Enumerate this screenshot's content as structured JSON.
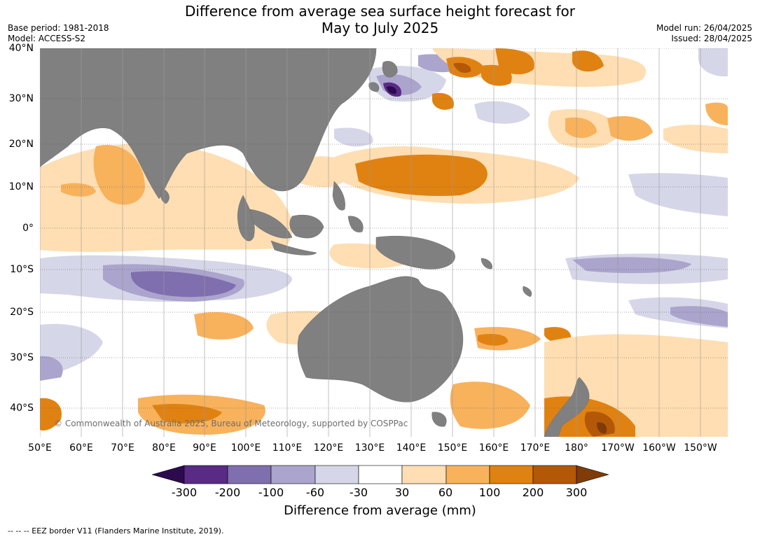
{
  "title": {
    "line1": "Difference from average sea surface height forecast for",
    "line2": "May to July 2025"
  },
  "meta": {
    "base_period": "Base period: 1981-2018",
    "model": "Model: ACCESS-S2",
    "model_run": "Model run: 26/04/2025",
    "issued": "Issued: 28/04/2025"
  },
  "lat_labels": [
    "40°N",
    "30°N",
    "20°N",
    "10°N",
    "0°",
    "10°S",
    "20°S",
    "30°S",
    "40°S"
  ],
  "lon_labels": [
    "50°E",
    "60°E",
    "70°E",
    "80°E",
    "90°E",
    "100°E",
    "110°E",
    "120°E",
    "130°E",
    "140°E",
    "150°E",
    "160°E",
    "170°E",
    "180°",
    "170°W",
    "160°W",
    "150°W"
  ],
  "copyright": "© Commonwealth of Australia 2025, Bureau of Meteorology, supported by COSPPac",
  "colorbar": {
    "title": "Difference from average (mm)",
    "ticks": [
      "-300",
      "-200",
      "-100",
      "-60",
      "-30",
      "30",
      "60",
      "100",
      "200",
      "300"
    ],
    "colors": [
      "#2d0a4e",
      "#5a2a87",
      "#7f6fae",
      "#aba4cc",
      "#d6d6e9",
      "#ffffff",
      "#fedeb2",
      "#f8b25c",
      "#e08212",
      "#b35806",
      "#7f3b08"
    ]
  },
  "footnote": "--  --  -- EEZ border V11 (Flanders Marine Institute, 2019)."
}
